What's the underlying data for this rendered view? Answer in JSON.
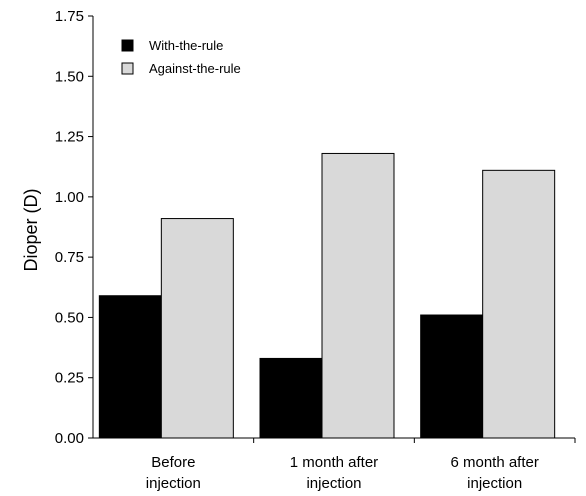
{
  "chart_data": {
    "type": "bar",
    "title": "",
    "xlabel": "",
    "ylabel": "Dioper (D)",
    "ylim": [
      0,
      1.75
    ],
    "yticks": [
      "0.00",
      "0.25",
      "0.50",
      "0.75",
      "1.00",
      "1.25",
      "1.50",
      "1.75"
    ],
    "categories": [
      [
        "Before",
        "injection"
      ],
      [
        "1 month after",
        "injection"
      ],
      [
        "6 month after",
        "injection"
      ]
    ],
    "series": [
      {
        "name": "With-the-rule",
        "color": "#000000",
        "values": [
          0.59,
          0.33,
          0.51
        ]
      },
      {
        "name": "Against-the-rule",
        "color": "#d9d9d9",
        "values": [
          0.91,
          1.18,
          1.11
        ]
      }
    ],
    "grid": false,
    "legend": "top-left"
  }
}
